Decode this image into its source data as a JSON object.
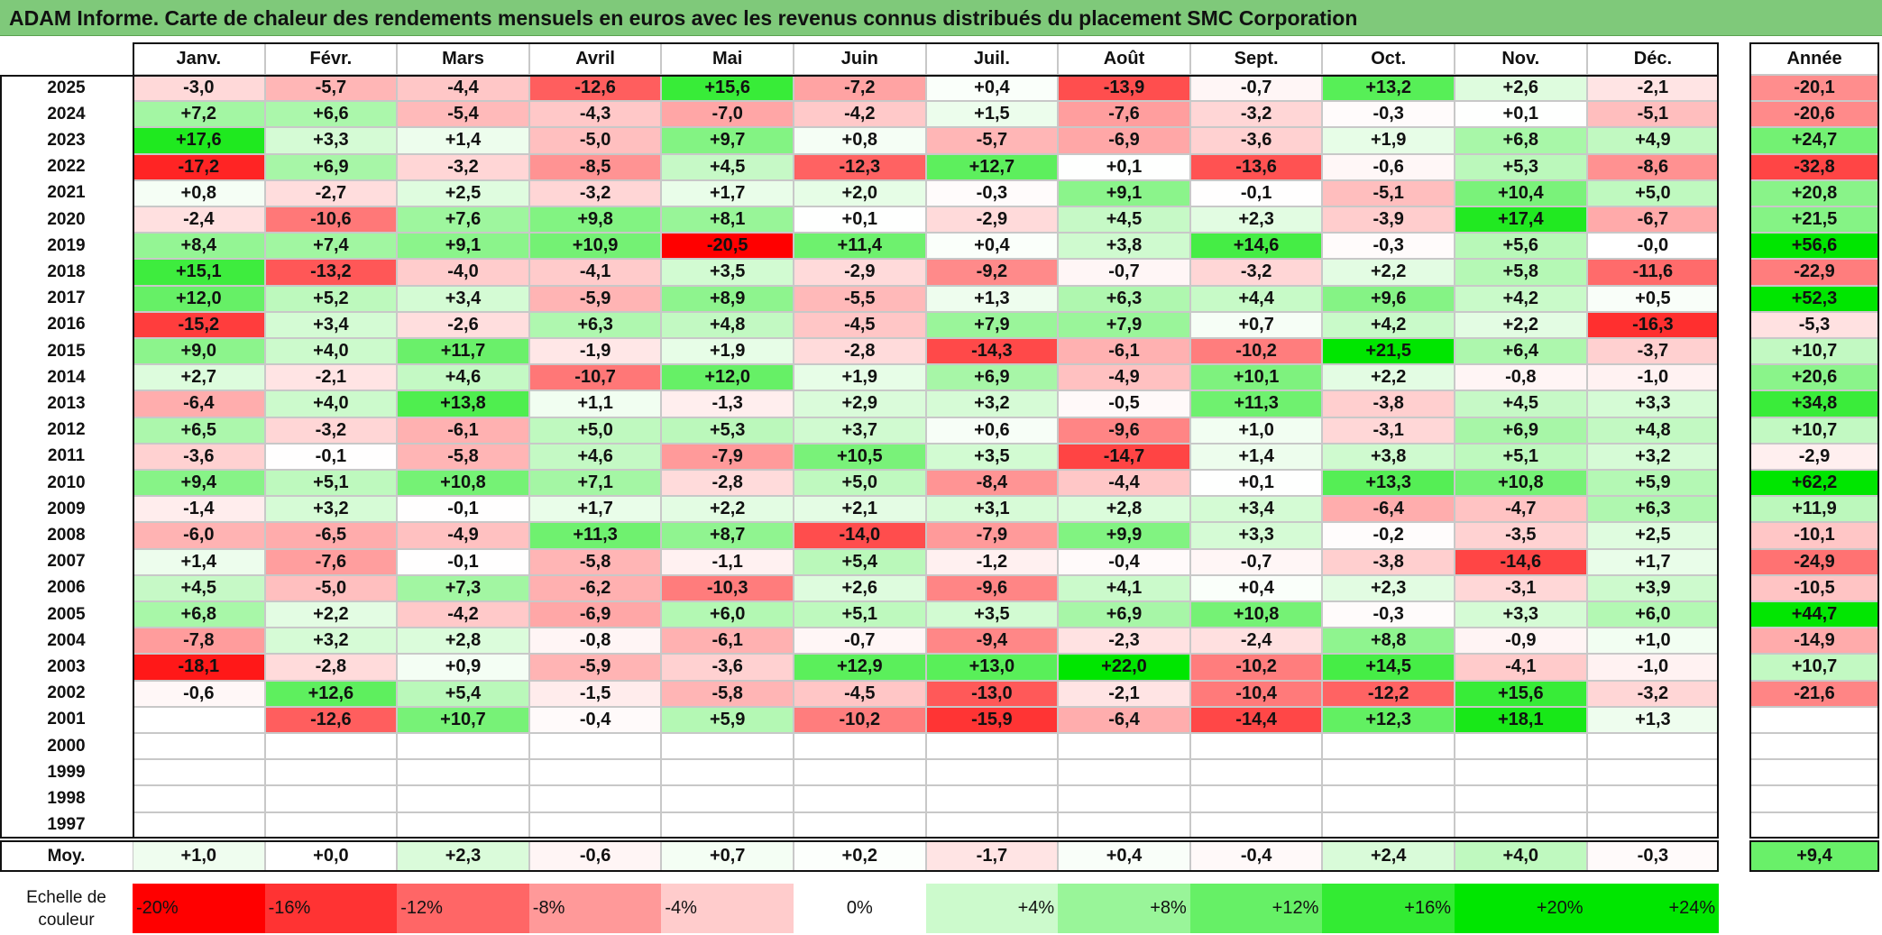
{
  "title": "ADAM Informe. Carte de chaleur des rendements mensuels en euros avec les revenus connus distribués du placement SMC Corporation",
  "chart_data": {
    "type": "heatmap",
    "title": "ADAM Informe. Carte de chaleur des rendements mensuels en euros avec les revenus connus distribués du placement SMC Corporation",
    "months": [
      "Janv.",
      "Févr.",
      "Mars",
      "Avril",
      "Mai",
      "Juin",
      "Juil.",
      "Août",
      "Sept.",
      "Oct.",
      "Nov.",
      "Déc."
    ],
    "year_header": "Année",
    "years": [
      "2025",
      "2024",
      "2023",
      "2022",
      "2021",
      "2020",
      "2019",
      "2018",
      "2017",
      "2016",
      "2015",
      "2014",
      "2013",
      "2012",
      "2011",
      "2010",
      "2009",
      "2008",
      "2007",
      "2006",
      "2005",
      "2004",
      "2003",
      "2002",
      "2001",
      "2000",
      "1999",
      "1998",
      "1997"
    ],
    "values": [
      [
        -3.0,
        -5.7,
        -4.4,
        -12.6,
        15.6,
        -7.2,
        0.4,
        -13.9,
        -0.7,
        13.2,
        2.6,
        -2.1
      ],
      [
        7.2,
        6.6,
        -5.4,
        -4.3,
        -7.0,
        -4.2,
        1.5,
        -7.6,
        -3.2,
        -0.3,
        0.1,
        -5.1
      ],
      [
        17.6,
        3.3,
        1.4,
        -5.0,
        9.7,
        0.8,
        -5.7,
        -6.9,
        -3.6,
        1.9,
        6.8,
        4.9
      ],
      [
        -17.2,
        6.9,
        -3.2,
        -8.5,
        4.5,
        -12.3,
        12.7,
        0.1,
        -13.6,
        -0.6,
        5.3,
        -8.6
      ],
      [
        0.8,
        -2.7,
        2.5,
        -3.2,
        1.7,
        2.0,
        -0.3,
        9.1,
        -0.1,
        -5.1,
        10.4,
        5.0
      ],
      [
        -2.4,
        -10.6,
        7.6,
        9.8,
        8.1,
        0.1,
        -2.9,
        4.5,
        2.3,
        -3.9,
        17.4,
        -6.7
      ],
      [
        8.4,
        7.4,
        9.1,
        10.9,
        -20.5,
        11.4,
        0.4,
        3.8,
        14.6,
        -0.3,
        5.6,
        -0.0
      ],
      [
        15.1,
        -13.2,
        -4.0,
        -4.1,
        3.5,
        -2.9,
        -9.2,
        -0.7,
        -3.2,
        2.2,
        5.8,
        -11.6
      ],
      [
        12.0,
        5.2,
        3.4,
        -5.9,
        8.9,
        -5.5,
        1.3,
        6.3,
        4.4,
        9.6,
        4.2,
        0.5
      ],
      [
        -15.2,
        3.4,
        -2.6,
        6.3,
        4.8,
        -4.5,
        7.9,
        7.9,
        0.7,
        4.2,
        2.2,
        -16.3
      ],
      [
        9.0,
        4.0,
        11.7,
        -1.9,
        1.9,
        -2.8,
        -14.3,
        -6.1,
        -10.2,
        21.5,
        6.4,
        -3.7
      ],
      [
        2.7,
        -2.1,
        4.6,
        -10.7,
        12.0,
        1.9,
        6.9,
        -4.9,
        10.1,
        2.2,
        -0.8,
        -1.0
      ],
      [
        -6.4,
        4.0,
        13.8,
        1.1,
        -1.3,
        2.9,
        3.2,
        -0.5,
        11.3,
        -3.8,
        4.5,
        3.3
      ],
      [
        6.5,
        -3.2,
        -6.1,
        5.0,
        5.3,
        3.7,
        0.6,
        -9.6,
        1.0,
        -3.1,
        6.9,
        4.8
      ],
      [
        -3.6,
        -0.1,
        -5.8,
        4.6,
        -7.9,
        10.5,
        3.5,
        -14.7,
        1.4,
        3.8,
        5.1,
        3.2
      ],
      [
        9.4,
        5.1,
        10.8,
        7.1,
        -2.8,
        5.0,
        -8.4,
        -4.4,
        0.1,
        13.3,
        10.8,
        5.9
      ],
      [
        -1.4,
        3.2,
        -0.1,
        1.7,
        2.2,
        2.1,
        3.1,
        2.8,
        3.4,
        -6.4,
        -4.7,
        6.3
      ],
      [
        -6.0,
        -6.5,
        -4.9,
        11.3,
        8.7,
        -14.0,
        -7.9,
        9.9,
        3.3,
        -0.2,
        -3.5,
        2.5
      ],
      [
        1.4,
        -7.6,
        -0.1,
        -5.8,
        -1.1,
        5.4,
        -1.2,
        -0.4,
        -0.7,
        -3.8,
        -14.6,
        1.7
      ],
      [
        4.5,
        -5.0,
        7.3,
        -6.2,
        -10.3,
        2.6,
        -9.6,
        4.1,
        0.4,
        2.3,
        -3.1,
        3.9
      ],
      [
        6.8,
        2.2,
        -4.2,
        -6.9,
        6.0,
        5.1,
        3.5,
        6.9,
        10.8,
        -0.3,
        3.3,
        6.0
      ],
      [
        -7.8,
        3.2,
        2.8,
        -0.8,
        -6.1,
        -0.7,
        -9.4,
        -2.3,
        -2.4,
        8.8,
        -0.9,
        1.0
      ],
      [
        -18.1,
        -2.8,
        0.9,
        -5.9,
        -3.6,
        12.9,
        13.0,
        22.0,
        -10.2,
        14.5,
        -4.1,
        -1.0
      ],
      [
        -0.6,
        12.6,
        5.4,
        -1.5,
        -5.8,
        -4.5,
        -13.0,
        -2.1,
        -10.4,
        -12.2,
        15.6,
        -3.2
      ],
      [
        null,
        -12.6,
        10.7,
        -0.4,
        5.9,
        -10.2,
        -15.9,
        -6.4,
        -14.4,
        12.3,
        18.1,
        1.3
      ],
      [
        null,
        null,
        null,
        null,
        null,
        null,
        null,
        null,
        null,
        null,
        null,
        null
      ],
      [
        null,
        null,
        null,
        null,
        null,
        null,
        null,
        null,
        null,
        null,
        null,
        null
      ],
      [
        null,
        null,
        null,
        null,
        null,
        null,
        null,
        null,
        null,
        null,
        null,
        null
      ],
      [
        null,
        null,
        null,
        null,
        null,
        null,
        null,
        null,
        null,
        null,
        null,
        null
      ]
    ],
    "annual": [
      -20.1,
      -20.6,
      24.7,
      -32.8,
      20.8,
      21.5,
      56.6,
      -22.9,
      52.3,
      -5.3,
      10.7,
      20.6,
      34.8,
      10.7,
      -2.9,
      62.2,
      11.9,
      -10.1,
      -24.9,
      -10.5,
      44.7,
      -14.9,
      10.7,
      -21.6,
      null,
      null,
      null,
      null,
      null
    ],
    "avg_label": "Moy.",
    "averages": [
      1.0,
      0.0,
      2.3,
      -0.6,
      0.7,
      0.2,
      -1.7,
      0.4,
      -0.4,
      2.4,
      4.0,
      -0.3
    ],
    "avg_annual": 9.4,
    "scale_label": "Echelle de couleur",
    "scale": [
      {
        "label": "-20%",
        "value": -20,
        "align": "left"
      },
      {
        "label": "-16%",
        "value": -16,
        "align": "left"
      },
      {
        "label": "-12%",
        "value": -12,
        "align": "left"
      },
      {
        "label": "-8%",
        "value": -8,
        "align": "left"
      },
      {
        "label": "-4%",
        "value": -4,
        "align": "left"
      },
      {
        "label": "0%",
        "value": 0,
        "align": "center"
      },
      {
        "label": "+4%",
        "value": 4,
        "align": "right"
      },
      {
        "label": "+8%",
        "value": 8,
        "align": "right"
      },
      {
        "label": "+12%",
        "value": 12,
        "align": "right"
      },
      {
        "label": "+16%",
        "value": 16,
        "align": "right"
      },
      {
        "label": "+20%",
        "value": 20,
        "align": "right"
      },
      {
        "label": "+24%",
        "value": 24,
        "align": "right"
      }
    ],
    "colors": {
      "positive": "#00e000",
      "negative": "#ff0000",
      "neutral": "#ffffff",
      "title_bg": "#7fc97a"
    }
  }
}
